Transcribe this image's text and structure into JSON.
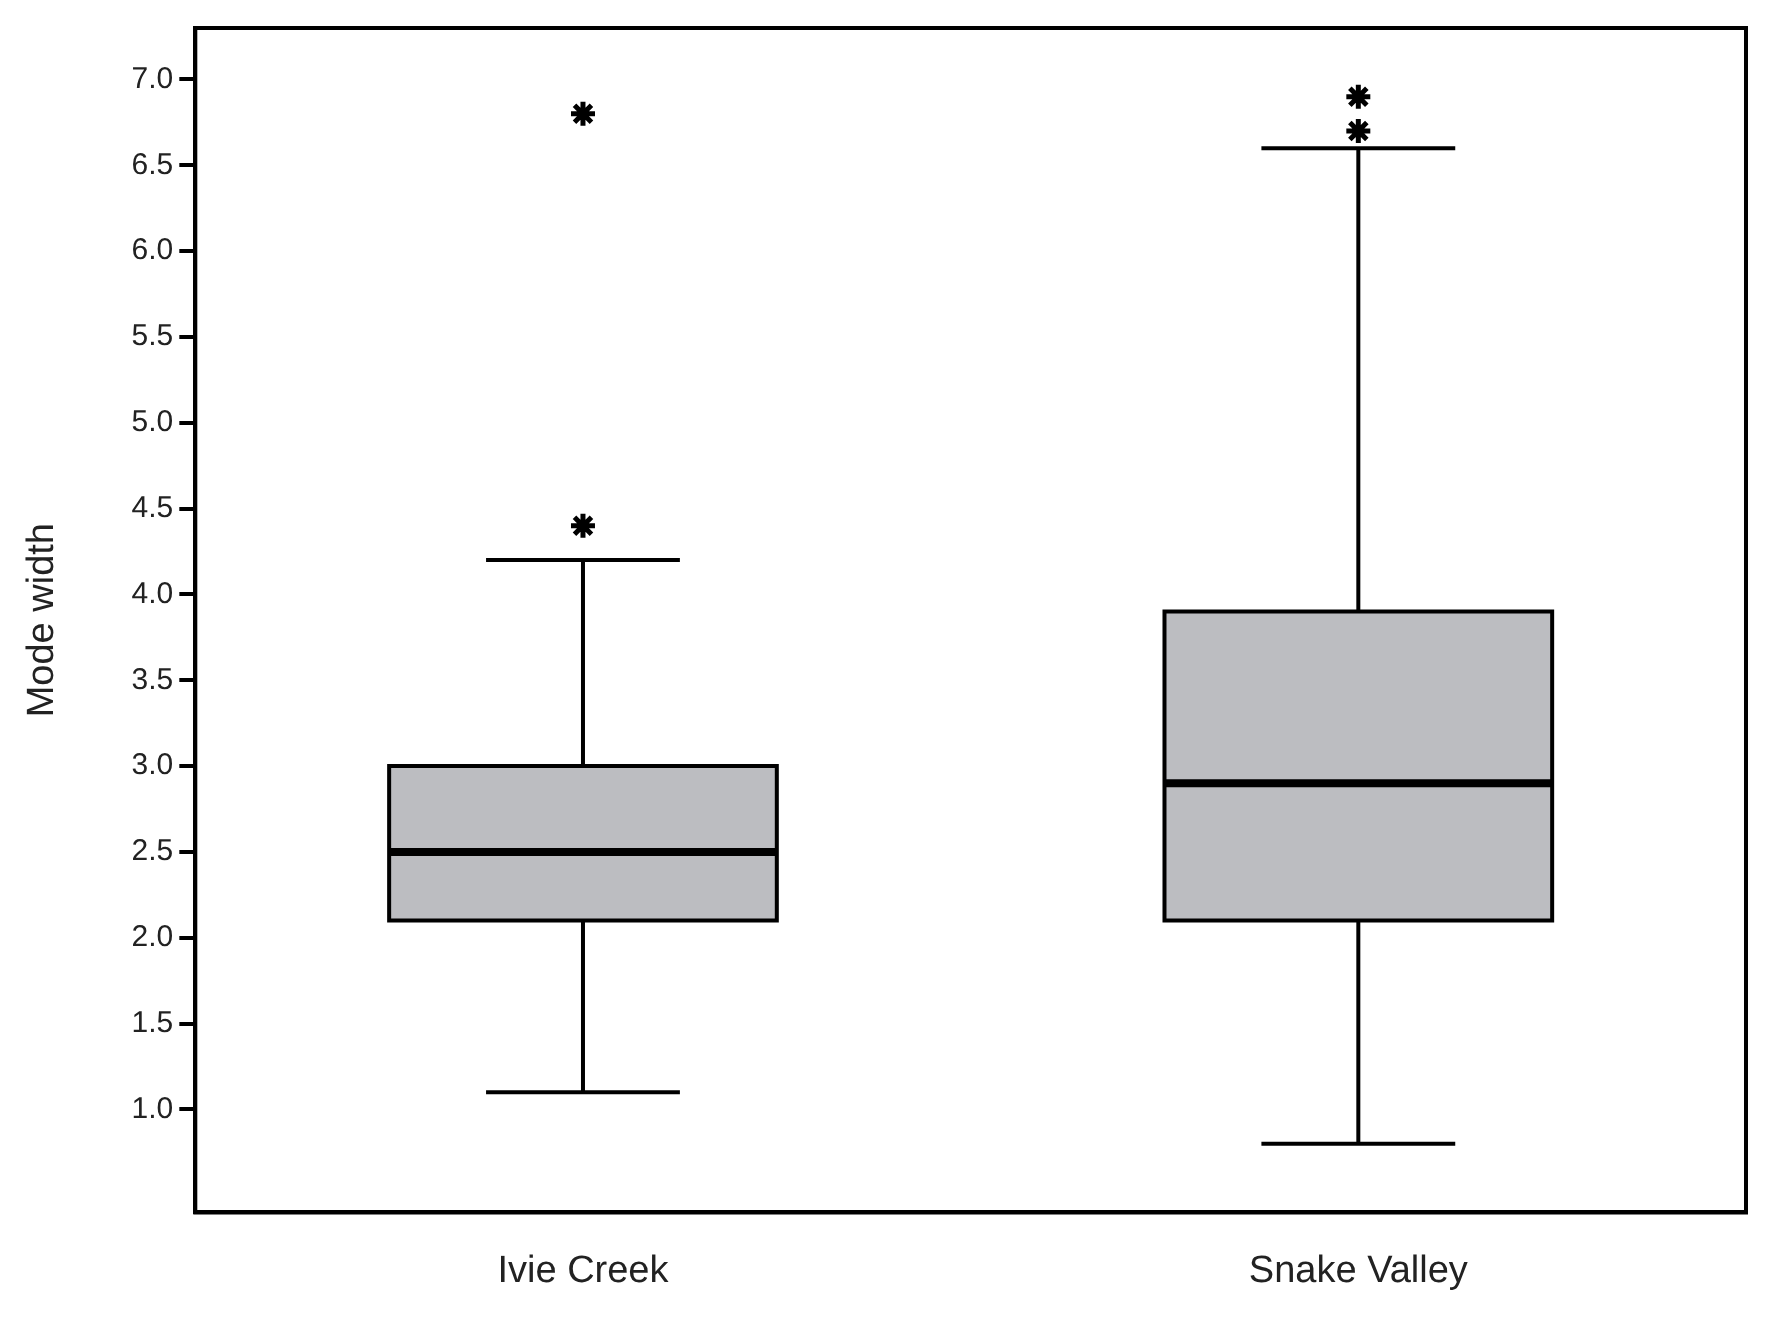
{
  "chart_data": {
    "type": "box",
    "ylabel": "Mode width",
    "categories": [
      "Ivie Creek",
      "Snake Valley"
    ],
    "boxes": [
      {
        "low": 1.1,
        "q1": 2.1,
        "median": 2.5,
        "q3": 3.0,
        "high": 4.2,
        "outliers": [
          4.4,
          6.8
        ]
      },
      {
        "low": 0.8,
        "q1": 2.1,
        "median": 2.9,
        "q3": 3.9,
        "high": 6.6,
        "outliers": [
          6.7,
          6.9
        ]
      }
    ],
    "color": "#bcbdc1",
    "marker": "star",
    "ylim": [
      0.4,
      7.3
    ],
    "yticks": [
      {
        "value": 1,
        "label": "1.0"
      },
      {
        "value": 1.5,
        "label": "1.5"
      },
      {
        "value": 2,
        "label": "2.0"
      },
      {
        "value": 2.5,
        "label": "2.5"
      },
      {
        "value": 3,
        "label": "3.0"
      },
      {
        "value": 3.5,
        "label": "3.5"
      },
      {
        "value": 4,
        "label": "4.0"
      },
      {
        "value": 4.5,
        "label": "4.5"
      },
      {
        "value": 5,
        "label": "5.0"
      },
      {
        "value": 5.5,
        "label": "5.5"
      },
      {
        "value": 6,
        "label": "6.0"
      },
      {
        "value": 6.5,
        "label": "6.5"
      },
      {
        "value": 7,
        "label": "7.0"
      }
    ],
    "grid": false,
    "legend": false
  }
}
